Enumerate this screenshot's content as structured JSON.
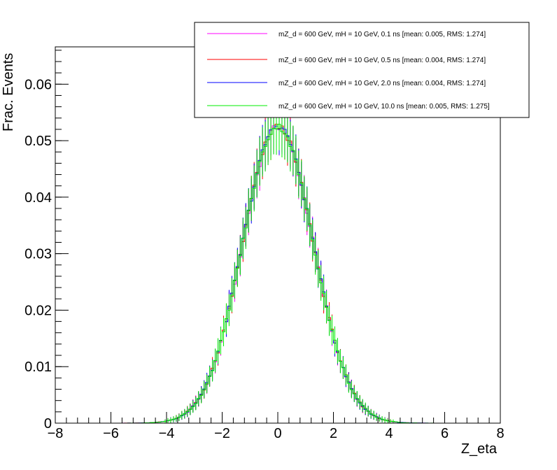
{
  "chart_data": {
    "type": "line",
    "title": "",
    "xlabel": "Z_eta",
    "ylabel": "Frac. Events",
    "xlim": [
      -8,
      8
    ],
    "ylim": [
      0,
      0.0666
    ],
    "x_ticks": [
      -8,
      -6,
      -4,
      -2,
      0,
      2,
      4,
      6,
      8
    ],
    "x_tick_labels": [
      "−8",
      "−6",
      "−4",
      "−2",
      "0",
      "2",
      "4",
      "6",
      "8"
    ],
    "y_ticks": [
      0,
      0.01,
      0.02,
      0.03,
      0.04,
      0.05,
      0.06
    ],
    "y_tick_labels": [
      "0",
      "0.01",
      "0.02",
      "0.03",
      "0.04",
      "0.05",
      "0.06"
    ],
    "grid": false,
    "legend_position": "top-right",
    "series": [
      {
        "name": "mZ_d = 600 GeV, mH = 10 GeV, 0.1 ns [mean: 0.005, RMS: 1.274]",
        "color": "#ff00ff",
        "style": "step",
        "mean": 0.005,
        "rms": 1.274,
        "scale": 0.999
      },
      {
        "name": "mZ_d = 600 GeV, mH = 10 GeV, 0.5 ns [mean: 0.004, RMS: 1.274]",
        "color": "#ff0000",
        "style": "step",
        "mean": 0.004,
        "rms": 1.274,
        "scale": 1.0
      },
      {
        "name": "mZ_d = 600 GeV, mH = 10 GeV, 2.0 ns [mean: 0.004, RMS: 1.274]",
        "color": "#0000ff",
        "style": "step",
        "mean": 0.004,
        "rms": 1.274,
        "scale": 1.003
      },
      {
        "name": "mZ_d = 600 GeV, mH = 10 GeV, 10.0 ns [mean: 0.005, RMS: 1.275]",
        "color": "#00ee00",
        "style": "step",
        "mean": 0.005,
        "rms": 1.275,
        "scale": 1.0
      }
    ],
    "bin_edges_range": [
      -8,
      8
    ],
    "bin_width": 0.1,
    "peak_value": 0.0525,
    "approx_points": [
      [
        -4,
        0.0011
      ],
      [
        -3,
        0.0055
      ],
      [
        -2,
        0.0165
      ],
      [
        -1,
        0.0375
      ],
      [
        0,
        0.0525
      ],
      [
        1,
        0.0375
      ],
      [
        2,
        0.0165
      ],
      [
        3,
        0.0055
      ],
      [
        4,
        0.0011
      ]
    ]
  }
}
